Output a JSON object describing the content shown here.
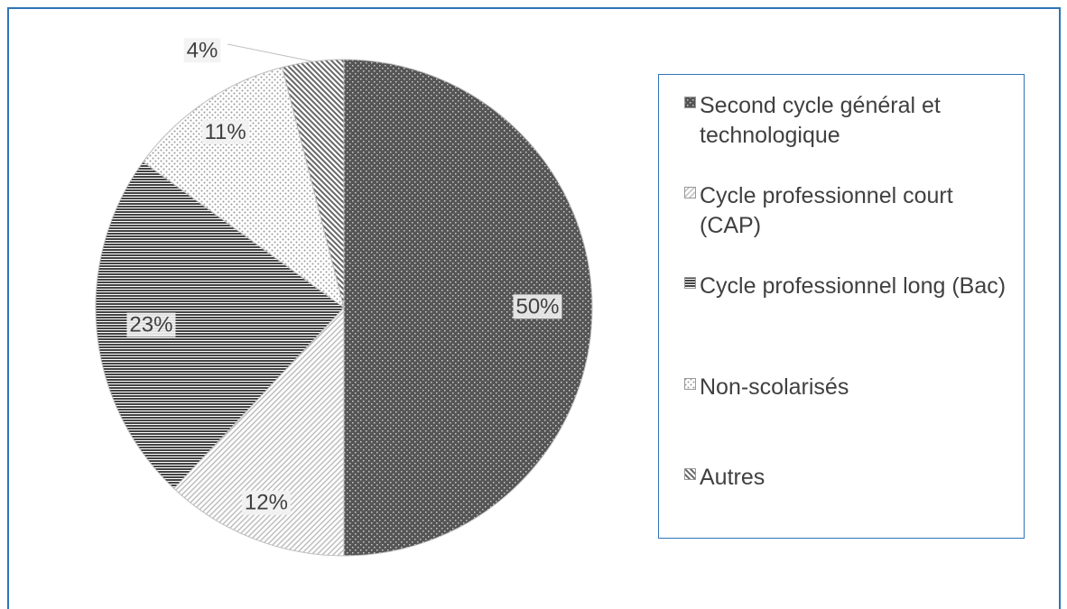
{
  "chart_data": {
    "type": "pie",
    "categories": [
      "Second cycle général et technologique",
      "Cycle professionnel court (CAP)",
      "Cycle professionnel long (Bac)",
      "Non-scolarisés",
      "Autres"
    ],
    "values": [
      50,
      12,
      23,
      11,
      4
    ],
    "value_labels": [
      "50%",
      "12%",
      "23%",
      "11%",
      "4%"
    ],
    "colors": [
      "#555555",
      "#bdbdbd",
      "#444444",
      "#9a9a9a",
      "#666666"
    ],
    "legend": "right"
  }
}
